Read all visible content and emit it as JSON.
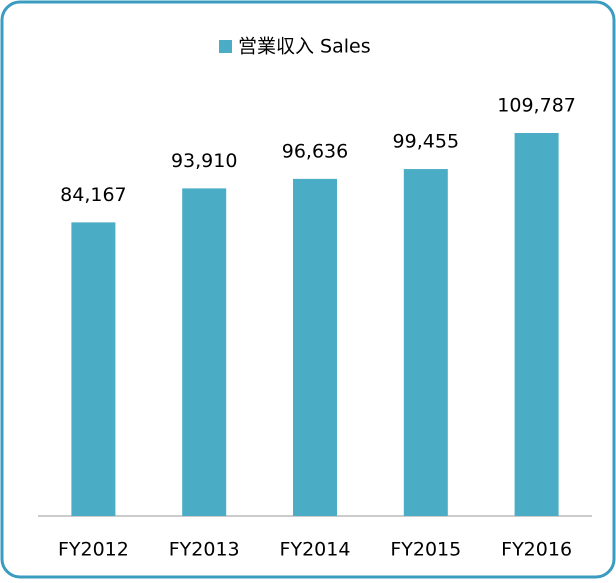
{
  "chart_data": {
    "type": "bar",
    "series": [
      {
        "name": "営業収入 Sales",
        "color": "#4bacc6",
        "values": [
          84167,
          93910,
          96636,
          99455,
          109787
        ],
        "value_labels": [
          "84,167",
          "93,910",
          "96,636",
          "99,455",
          "109,787"
        ]
      }
    ],
    "categories": [
      "FY2012",
      "FY2013",
      "FY2014",
      "FY2015",
      "FY2016"
    ]
  }
}
